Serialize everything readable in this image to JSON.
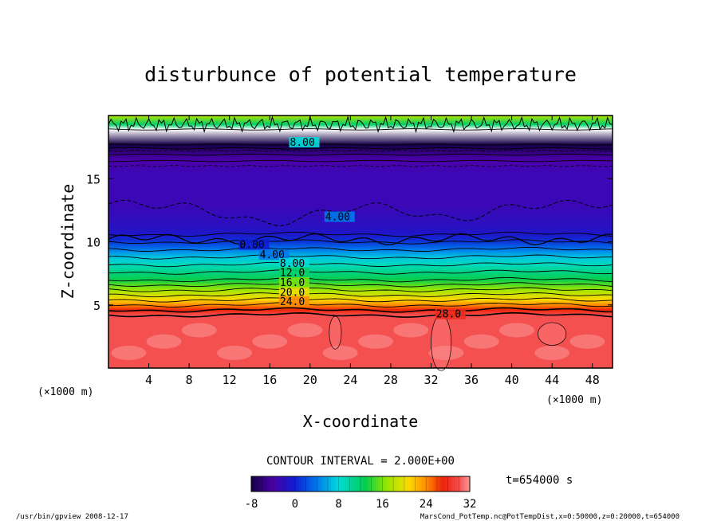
{
  "chart_data": {
    "type": "heatmap",
    "title": "disturbunce of potential temperature",
    "xlabel": "X-coordinate",
    "ylabel": "Z-coordinate",
    "x_unit_left": "(×1000 m)",
    "x_unit_right": "(×1000 m)",
    "xlim": [
      0,
      50
    ],
    "ylim": [
      0,
      20
    ],
    "x_ticks": [
      "4",
      "8",
      "12",
      "16",
      "20",
      "24",
      "28",
      "32",
      "36",
      "40",
      "44",
      "48"
    ],
    "y_ticks": [
      "5",
      "10",
      "15"
    ],
    "contour_interval_label": "CONTOUR INTERVAL = 2.000E+00",
    "time_label": "t=654000 s",
    "colorbar": {
      "min": -8,
      "max": 32,
      "ticks": [
        "-8",
        "0",
        "8",
        "16",
        "24",
        "32"
      ]
    },
    "contour_labels": [
      {
        "text": "8.00",
        "x": 18,
        "z": 17.6
      },
      {
        "text": "4.00",
        "x": 21.5,
        "z": 11.7
      },
      {
        "text": "0.00",
        "x": 13,
        "z": 9.5
      },
      {
        "text": "4.00",
        "x": 15,
        "z": 8.7
      },
      {
        "text": "8.00",
        "x": 17,
        "z": 8.0
      },
      {
        "text": "12.0",
        "x": 17,
        "z": 7.3
      },
      {
        "text": "16.0",
        "x": 17,
        "z": 6.5
      },
      {
        "text": "20.0",
        "x": 17,
        "z": 5.7
      },
      {
        "text": "24.0",
        "x": 17,
        "z": 5.0
      },
      {
        "text": "28.0",
        "x": 32.5,
        "z": 4.0
      }
    ],
    "profile": [
      {
        "z": 0.0,
        "value": 30
      },
      {
        "z": 4.2,
        "value": 30
      },
      {
        "z": 4.6,
        "value": 27
      },
      {
        "z": 5.0,
        "value": 24
      },
      {
        "z": 5.4,
        "value": 21
      },
      {
        "z": 5.8,
        "value": 19
      },
      {
        "z": 6.2,
        "value": 17
      },
      {
        "z": 6.6,
        "value": 15
      },
      {
        "z": 7.0,
        "value": 13
      },
      {
        "z": 7.6,
        "value": 11
      },
      {
        "z": 8.2,
        "value": 9
      },
      {
        "z": 8.8,
        "value": 7
      },
      {
        "z": 9.4,
        "value": 4
      },
      {
        "z": 10.0,
        "value": 1
      },
      {
        "z": 10.6,
        "value": -1
      },
      {
        "z": 11.5,
        "value": -2
      },
      {
        "z": 13.0,
        "value": -3
      },
      {
        "z": 15.5,
        "value": -3
      },
      {
        "z": 16.4,
        "value": -4
      },
      {
        "z": 16.9,
        "value": -5
      },
      {
        "z": 17.4,
        "value": -7
      },
      {
        "z": 17.7,
        "value": -8
      },
      {
        "z": 18.9,
        "value": 33
      },
      {
        "z": 19.3,
        "value": 12
      },
      {
        "z": 20.0,
        "value": 18
      }
    ]
  },
  "footer": {
    "left": "/usr/bin/gpview  2008-12-17",
    "right": "MarsCond_PotTemp.nc@PotTempDist,x=0:50000,z=0:20000,t=654000"
  }
}
